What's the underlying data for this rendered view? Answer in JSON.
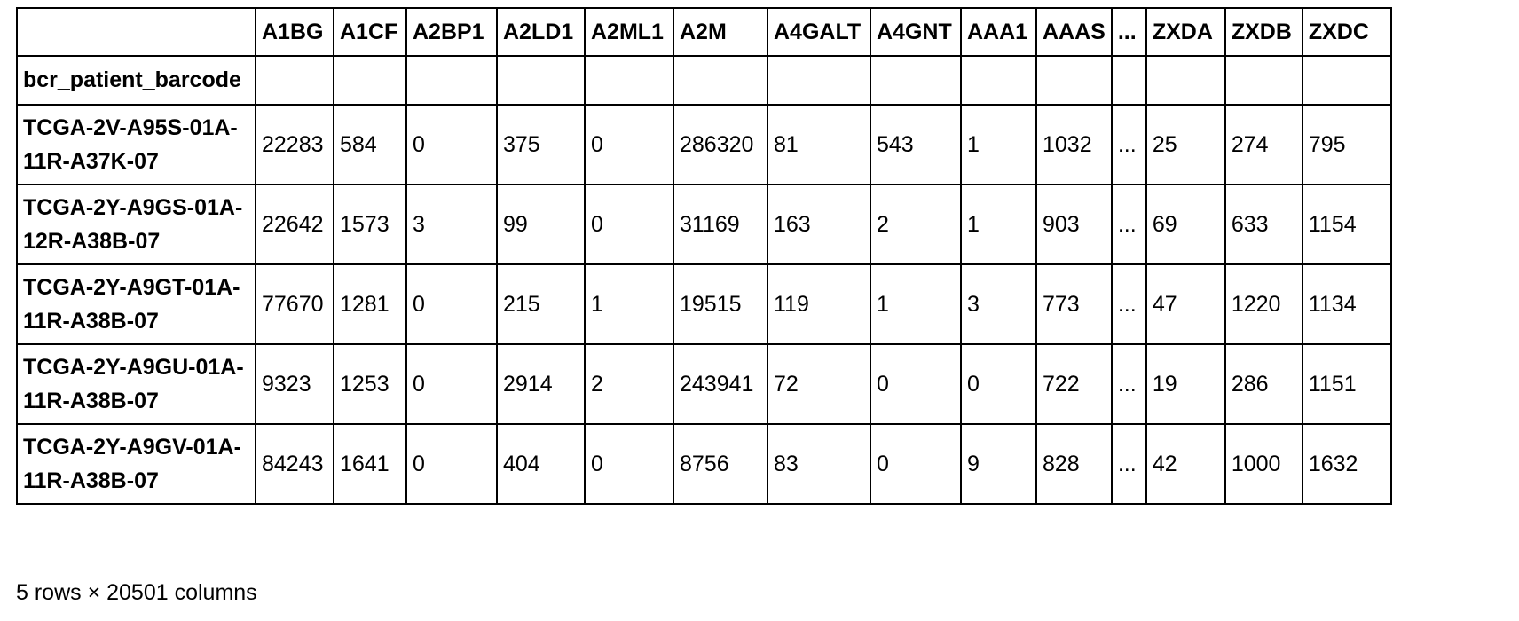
{
  "table": {
    "columns": [
      "A1BG",
      "A1CF",
      "A2BP1",
      "A2LD1",
      "A2ML1",
      "A2M",
      "A4GALT",
      "A4GNT",
      "AAA1",
      "AAAS",
      "...",
      "ZXDA",
      "ZXDB",
      "ZXDC"
    ],
    "index_name": "bcr_patient_barcode",
    "rows": [
      {
        "index": "TCGA-2V-A95S-01A-11R-A37K-07",
        "values": [
          "22283",
          "584",
          "0",
          "375",
          "0",
          "286320",
          "81",
          "543",
          "1",
          "1032",
          "...",
          "25",
          "274",
          "795"
        ]
      },
      {
        "index": "TCGA-2Y-A9GS-01A-12R-A38B-07",
        "values": [
          "22642",
          "1573",
          "3",
          "99",
          "0",
          "31169",
          "163",
          "2",
          "1",
          "903",
          "...",
          "69",
          "633",
          "1154"
        ]
      },
      {
        "index": "TCGA-2Y-A9GT-01A-11R-A38B-07",
        "values": [
          "77670",
          "1281",
          "0",
          "215",
          "1",
          "19515",
          "119",
          "1",
          "3",
          "773",
          "...",
          "47",
          "1220",
          "1134"
        ]
      },
      {
        "index": "TCGA-2Y-A9GU-01A-11R-A38B-07",
        "values": [
          "9323",
          "1253",
          "0",
          "2914",
          "2",
          "243941",
          "72",
          "0",
          "0",
          "722",
          "...",
          "19",
          "286",
          "1151"
        ]
      },
      {
        "index": "TCGA-2Y-A9GV-01A-11R-A38B-07",
        "values": [
          "84243",
          "1641",
          "0",
          "404",
          "0",
          "8756",
          "83",
          "0",
          "9",
          "828",
          "...",
          "42",
          "1000",
          "1632"
        ]
      }
    ]
  },
  "footer": {
    "shape_text": "5 rows × 20501 columns"
  }
}
